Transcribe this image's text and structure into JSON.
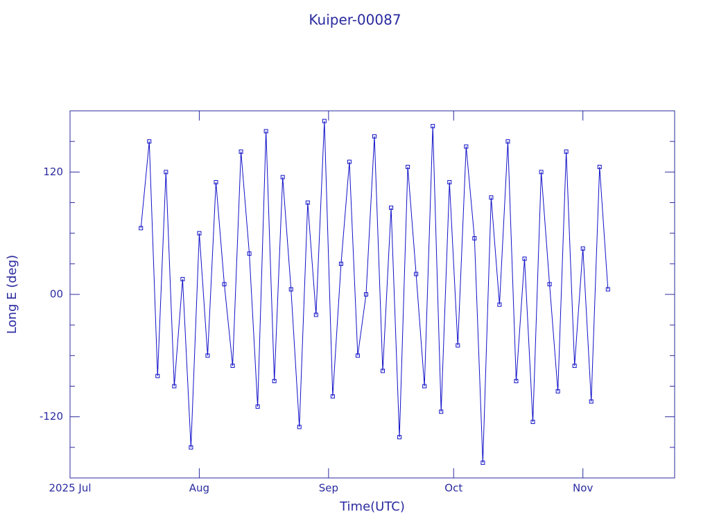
{
  "chart_data": {
    "type": "line",
    "title": "Kuiper-00087",
    "xlabel": "Time(UTC)",
    "ylabel": "Long E (deg)",
    "color": "#1010c8",
    "axis_color": "#2a2aa0",
    "markers": true,
    "xlim": [
      "2025-07-01",
      "2025-11-23"
    ],
    "xticks": [
      {
        "value": "2025-07-01",
        "label": "2025 Jul"
      },
      {
        "value": "2025-08-01",
        "label": "Aug"
      },
      {
        "value": "2025-09-01",
        "label": "Sep"
      },
      {
        "value": "2025-10-01",
        "label": "Oct"
      },
      {
        "value": "2025-11-01",
        "label": "Nov"
      }
    ],
    "ylim": [
      -180,
      180
    ],
    "yticks": [
      -120,
      {
        "value": 0,
        "label": "00"
      },
      120
    ],
    "y_minor_ticks": [
      -150,
      -90,
      -60,
      -30,
      30,
      60,
      90,
      150
    ],
    "x": [
      "2025-07-18",
      "2025-07-20",
      "2025-07-22",
      "2025-07-24",
      "2025-07-26",
      "2025-07-28",
      "2025-07-30",
      "2025-08-01",
      "2025-08-03",
      "2025-08-05",
      "2025-08-07",
      "2025-08-09",
      "2025-08-11",
      "2025-08-13",
      "2025-08-15",
      "2025-08-17",
      "2025-08-19",
      "2025-08-21",
      "2025-08-23",
      "2025-08-25",
      "2025-08-27",
      "2025-08-29",
      "2025-08-31",
      "2025-09-02",
      "2025-09-04",
      "2025-09-06",
      "2025-09-08",
      "2025-09-10",
      "2025-09-12",
      "2025-09-14",
      "2025-09-16",
      "2025-09-18",
      "2025-09-20",
      "2025-09-22",
      "2025-09-24",
      "2025-09-26",
      "2025-09-28",
      "2025-09-30",
      "2025-10-02",
      "2025-10-04",
      "2025-10-06",
      "2025-10-08",
      "2025-10-10",
      "2025-10-12",
      "2025-10-14",
      "2025-10-16",
      "2025-10-18",
      "2025-10-20",
      "2025-10-22",
      "2025-10-24",
      "2025-10-26",
      "2025-10-28",
      "2025-10-30",
      "2025-11-01",
      "2025-11-03",
      "2025-11-05",
      "2025-11-07"
    ],
    "values": [
      65,
      150,
      -80,
      120,
      -90,
      15,
      -150,
      60,
      -60,
      110,
      10,
      -70,
      140,
      40,
      -110,
      160,
      -85,
      115,
      5,
      -130,
      90,
      -20,
      170,
      -100,
      30,
      130,
      -60,
      0,
      155,
      -75,
      85,
      -140,
      125,
      20,
      -90,
      165,
      -115,
      110,
      -50,
      145,
      55,
      -165,
      95,
      -10,
      150,
      -85,
      35,
      -125,
      120,
      10,
      -95,
      140,
      -70,
      45,
      -105,
      125,
      5
    ]
  }
}
